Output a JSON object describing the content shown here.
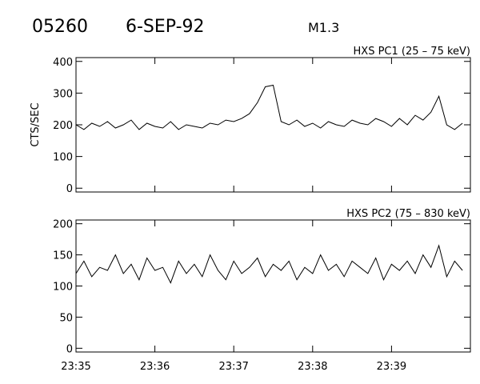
{
  "header": {
    "event": "05260",
    "date": "6-SEP-92",
    "class": "M1.3"
  },
  "chart_data": [
    {
      "type": "line",
      "title": "HXS PC1 (25 – 75 keV)",
      "y_label": "CTS/SEC",
      "x": [
        1415,
        1415.1,
        1415.2,
        1415.3,
        1415.4,
        1415.5,
        1415.6,
        1415.7,
        1415.8,
        1415.9,
        1416,
        1416.1,
        1416.2,
        1416.3,
        1416.4,
        1416.5,
        1416.6,
        1416.7,
        1416.8,
        1416.9,
        1417,
        1417.1,
        1417.2,
        1417.3,
        1417.4,
        1417.5,
        1417.6,
        1417.7,
        1417.8,
        1417.9,
        1418,
        1418.1,
        1418.2,
        1418.3,
        1418.4,
        1418.5,
        1418.6,
        1418.7,
        1418.8,
        1418.9,
        1419,
        1419.1,
        1419.2,
        1419.3,
        1419.4,
        1419.5,
        1419.6,
        1419.7,
        1419.8,
        1419.9
      ],
      "series": [
        {
          "color": "#000000",
          "values": [
            200,
            185,
            205,
            195,
            210,
            190,
            200,
            215,
            185,
            205,
            195,
            190,
            210,
            185,
            200,
            195,
            190,
            205,
            200,
            215,
            210,
            220,
            235,
            270,
            320,
            325,
            210,
            200,
            215,
            195,
            205,
            190,
            210,
            200,
            195,
            215,
            205,
            200,
            220,
            210,
            195,
            220,
            200,
            230,
            215,
            240,
            290,
            200,
            185,
            205
          ]
        }
      ],
      "xlim": [
        1415,
        1420
      ],
      "xticks": [
        1415,
        1416,
        1417,
        1418,
        1419
      ],
      "ylim": [
        -12,
        412
      ],
      "yticks": [
        0,
        100,
        200,
        300,
        400
      ]
    },
    {
      "type": "line",
      "title": "HXS PC2 (75 – 830 keV)",
      "x": [
        1415,
        1415.1,
        1415.2,
        1415.3,
        1415.4,
        1415.5,
        1415.6,
        1415.7,
        1415.8,
        1415.9,
        1416,
        1416.1,
        1416.2,
        1416.3,
        1416.4,
        1416.5,
        1416.6,
        1416.7,
        1416.8,
        1416.9,
        1417,
        1417.1,
        1417.2,
        1417.3,
        1417.4,
        1417.5,
        1417.6,
        1417.7,
        1417.8,
        1417.9,
        1418,
        1418.1,
        1418.2,
        1418.3,
        1418.4,
        1418.5,
        1418.6,
        1418.7,
        1418.8,
        1418.9,
        1419,
        1419.1,
        1419.2,
        1419.3,
        1419.4,
        1419.5,
        1419.6,
        1419.7,
        1419.8,
        1419.9
      ],
      "series": [
        {
          "color": "#000000",
          "values": [
            120,
            140,
            115,
            130,
            125,
            150,
            120,
            135,
            110,
            145,
            125,
            130,
            105,
            140,
            120,
            135,
            115,
            150,
            125,
            110,
            140,
            120,
            130,
            145,
            115,
            135,
            125,
            140,
            110,
            130,
            120,
            150,
            125,
            135,
            115,
            140,
            130,
            120,
            145,
            110,
            135,
            125,
            140,
            120,
            150,
            130,
            165,
            115,
            140,
            125
          ]
        }
      ],
      "xlim": [
        1415,
        1420
      ],
      "xticks": [
        {
          "value": 1415,
          "label": "23:35"
        },
        {
          "value": 1416,
          "label": "23:36"
        },
        {
          "value": 1417,
          "label": "23:37"
        },
        {
          "value": 1418,
          "label": "23:38"
        },
        {
          "value": 1419,
          "label": "23:39"
        }
      ],
      "ylim": [
        -6,
        206
      ],
      "yticks": [
        0,
        50,
        100,
        150,
        200
      ]
    }
  ]
}
